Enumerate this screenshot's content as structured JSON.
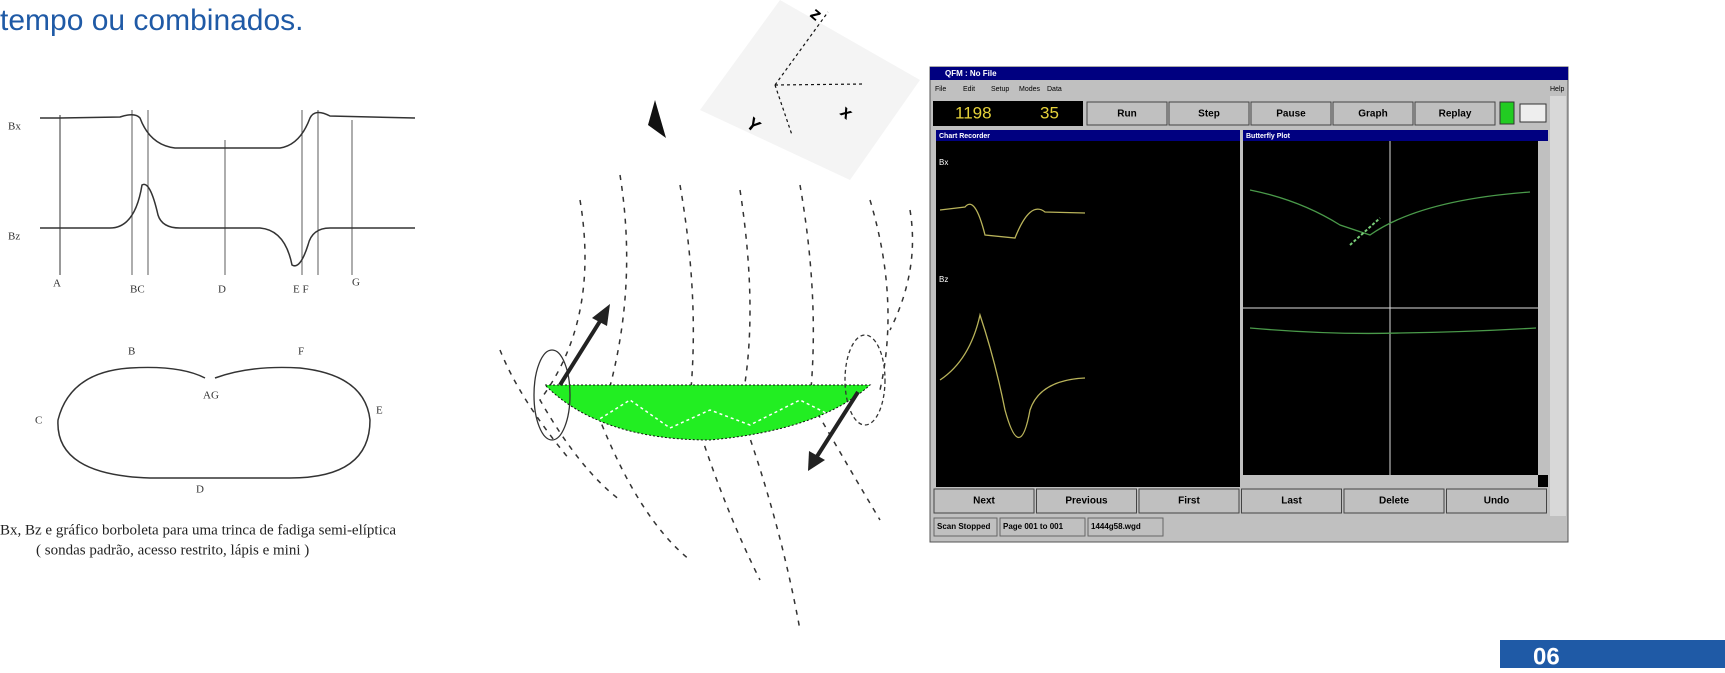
{
  "slide": {
    "heading": "tempo ou combinados.",
    "page_number": "06"
  },
  "signal_figure": {
    "trace_labels": [
      "Bx",
      "Bz"
    ],
    "point_labels": [
      "A",
      "BC",
      "D",
      "E F",
      "G"
    ],
    "butterfly_labels": [
      "B",
      "F",
      "AG",
      "C",
      "E",
      "D"
    ],
    "caption": [
      "Bx, Bz e gráfico borboleta para uma trinca de fadiga semi-elíptica",
      "( sondas padrão, acesso restrito, lápis e mini )"
    ]
  },
  "axes_figure": {
    "labels": [
      "z",
      "x",
      "Y"
    ]
  },
  "app": {
    "title": "QFM : No File",
    "menu": [
      "File",
      "Edit",
      "Setup",
      "Modes",
      "Data"
    ],
    "help": "Help",
    "readouts": [
      "1198",
      "35"
    ],
    "toolbar": [
      "Run",
      "Step",
      "Pause",
      "Graph",
      "Replay"
    ],
    "panels": [
      "Chart Recorder",
      "Butterfly Plot"
    ],
    "trace_labels": [
      "Bx",
      "Bz"
    ],
    "bottom_buttons": [
      "Next",
      "Previous",
      "First",
      "Last",
      "Delete",
      "Undo"
    ],
    "status": [
      "Scan Stopped",
      "Page 001 to 001",
      "1444g58.wgd"
    ]
  }
}
